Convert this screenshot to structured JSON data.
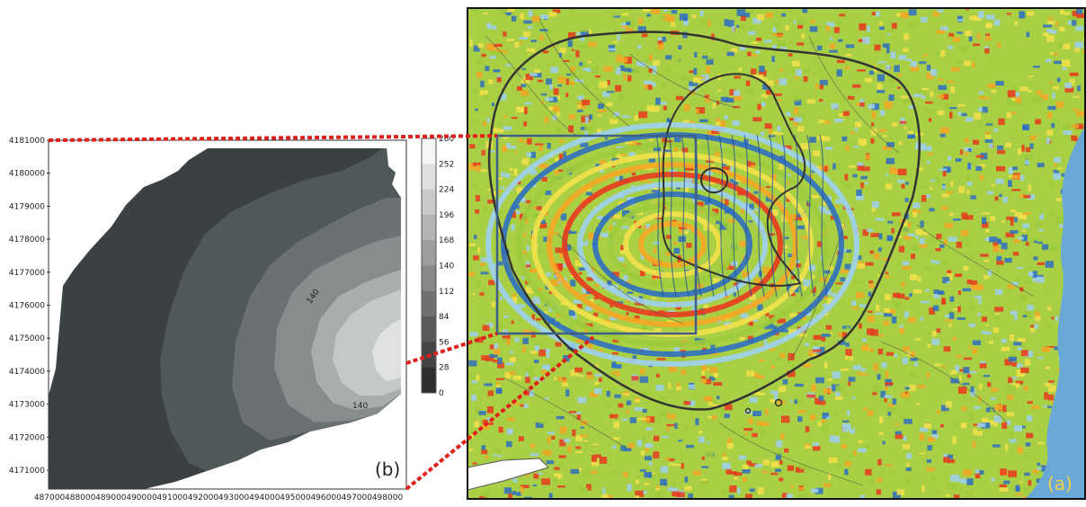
{
  "panel_b": {
    "label": "(b)",
    "y_ticks": [
      "4181000",
      "4180000",
      "4179000",
      "4178000",
      "4177000",
      "4176000",
      "4175000",
      "4174000",
      "4173000",
      "4172000",
      "4171000"
    ],
    "x_ticks": [
      "487000",
      "488000",
      "489000",
      "490000",
      "491000",
      "492000",
      "493000",
      "494000",
      "495000",
      "496000",
      "497000",
      "498000"
    ],
    "colorbar_ticks": [
      "280",
      "252",
      "224",
      "196",
      "168",
      "140",
      "112",
      "84",
      "56",
      "28",
      "0"
    ],
    "contour_labels": [
      "140",
      "140"
    ]
  },
  "panel_a": {
    "label": "(a)",
    "label_color": "#f2d24a",
    "sea_color": "#6aa8d8",
    "fringe_colors": [
      "#e83a1e",
      "#f5a623",
      "#f2e14a",
      "#9ccb3b",
      "#2f6fc0",
      "#9fd0ee"
    ],
    "inset_box_color": "#3d5f8a",
    "connector_color": "#e0201a"
  }
}
